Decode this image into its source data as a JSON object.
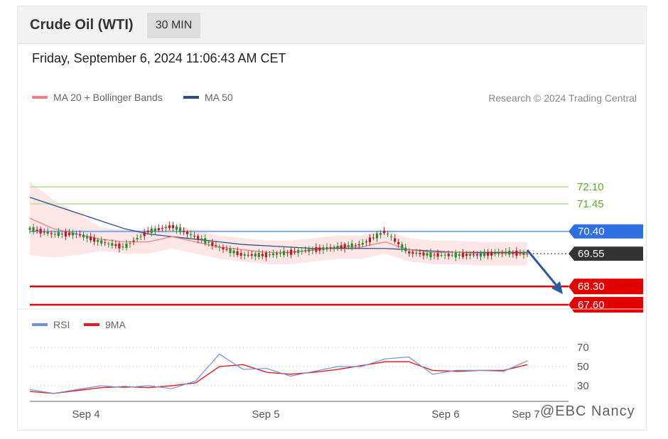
{
  "header": {
    "title": "Crude Oil (WTI)",
    "interval": "30 MIN"
  },
  "timestamp": "Friday, September 6, 2024 11:06:43 AM CET",
  "legend": {
    "ma20": "MA 20 + Bollinger Bands",
    "ma50": "MA 50",
    "credit": "Research © 2024 Trading Central"
  },
  "levels": [
    {
      "label": "72.10",
      "value": 72.1,
      "kind": "resistance-line",
      "color": "#5aaa28"
    },
    {
      "label": "71.45",
      "value": 71.45,
      "kind": "resistance-line",
      "color": "#5aaa28"
    },
    {
      "label": "70.40",
      "value": 70.4,
      "kind": "pivot",
      "color": "#2f6fe0"
    },
    {
      "label": "69.55",
      "value": 69.55,
      "kind": "last-price",
      "color": "#333333"
    },
    {
      "label": "68.30",
      "value": 68.3,
      "kind": "support",
      "color": "#e00000"
    },
    {
      "label": "67.60",
      "value": 67.6,
      "kind": "support",
      "color": "#e00000"
    }
  ],
  "rsi_legend": {
    "rsi": "RSI",
    "ma": "9MA"
  },
  "rsi_ticks": [
    "70",
    "50",
    "30"
  ],
  "x_ticks": [
    "Sep 4",
    "Sep 5",
    "Sep 6",
    "Sep 7"
  ],
  "watermark": "@EBC Nancy",
  "colors": {
    "ma20": "#f08080",
    "ma50": "#2b4f8c",
    "band": "#fde2e2",
    "up": "#2e8b2e",
    "down": "#b22222",
    "rsi": "#6f8fe0",
    "rsi_ma": "#e02020"
  },
  "chart_data": {
    "type": "line",
    "title": "Crude Oil (WTI)",
    "x": [
      "Sep 4",
      "Sep 5",
      "Sep 6",
      "Sep 7"
    ],
    "price_series": [
      {
        "name": "Price",
        "values": [
          70.5,
          70.3,
          70.3,
          70.0,
          69.8,
          70.4,
          70.6,
          70.2,
          69.8,
          69.5,
          69.5,
          69.6,
          69.7,
          69.8,
          69.9,
          70.4,
          69.6,
          69.5,
          69.5,
          69.5,
          69.6,
          69.55
        ]
      },
      {
        "name": "MA 20",
        "values": [
          70.9,
          70.5,
          70.3,
          70.1,
          70.0,
          70.0,
          70.2,
          70.0,
          69.8,
          69.7,
          69.6,
          69.6,
          69.7,
          69.8,
          69.8,
          70.0,
          69.7,
          69.6,
          69.6,
          69.55,
          69.55,
          69.55
        ]
      },
      {
        "name": "MA 50",
        "values": [
          71.7,
          71.4,
          71.1,
          70.8,
          70.5,
          70.3,
          70.2,
          70.1,
          70.0,
          69.9,
          69.85,
          69.8,
          69.75,
          69.75,
          69.75,
          69.75,
          69.7,
          69.65,
          69.6,
          69.6,
          69.6,
          69.6
        ]
      }
    ],
    "rsi_series": [
      {
        "name": "RSI",
        "values": [
          26,
          22,
          26,
          30,
          28,
          30,
          27,
          35,
          63,
          47,
          48,
          40,
          45,
          50,
          50,
          58,
          60,
          42,
          46,
          46,
          45,
          56
        ]
      },
      {
        "name": "9MA",
        "values": [
          24,
          22,
          25,
          28,
          29,
          28,
          30,
          33,
          50,
          52,
          44,
          42,
          44,
          47,
          51,
          55,
          55,
          46,
          45,
          46,
          46,
          52
        ]
      }
    ],
    "ylim": [
      67.2,
      73.6
    ],
    "rsi_ylim": [
      15,
      80
    ],
    "grid": false,
    "legend_position": "top-left"
  }
}
